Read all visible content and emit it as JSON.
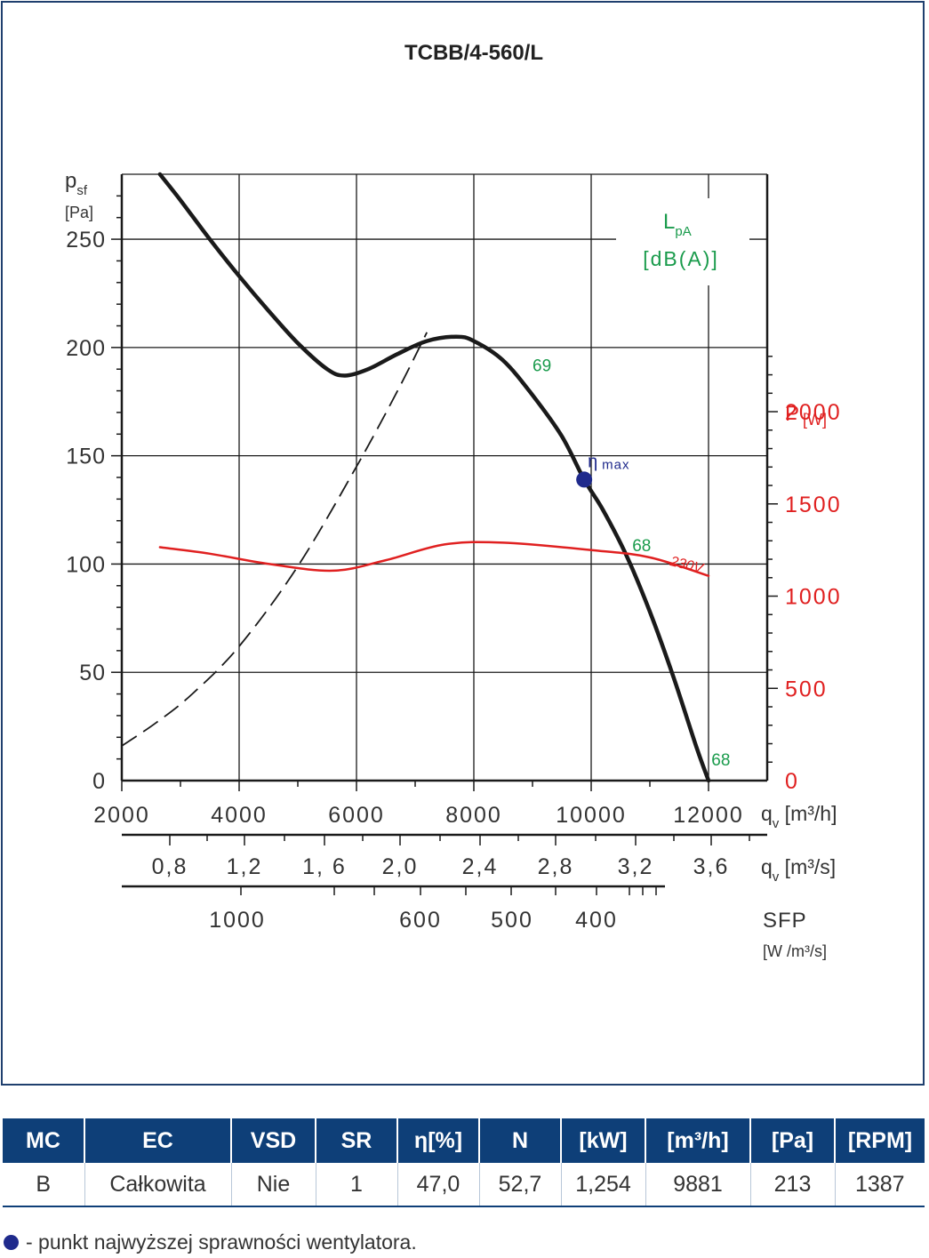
{
  "title": "TCBB/4-560/L",
  "chart_data": {
    "type": "line",
    "title": "TCBB/4-560/L",
    "x": {
      "label": "q",
      "label_sub": "v",
      "unit": " [m³/h]",
      "range": [
        2000,
        13000
      ],
      "ticks": [
        "2000",
        "4000",
        "6000",
        "8000",
        "10000",
        "12000"
      ]
    },
    "x2": {
      "label": "q",
      "label_sub": "v",
      "unit": " [m³/s]",
      "ticks": [
        "0,8",
        "1,2",
        "1, 6",
        "2,0",
        "2,4",
        "2,8",
        "3,2",
        "3,6"
      ]
    },
    "sfp": {
      "label": "SFP",
      "unit": "[W /m³/s]",
      "ticks": [
        "1000",
        "600",
        "500",
        "400"
      ]
    },
    "y_left": {
      "label": "p",
      "label_sub": "sf",
      "unit": "[Pa]",
      "range": [
        0,
        280
      ],
      "ticks": [
        "0",
        "50",
        "100",
        "150",
        "200",
        "250"
      ]
    },
    "y_right": {
      "label": "P",
      "unit": "[W]",
      "range": [
        0,
        2000
      ],
      "ticks": [
        "0",
        "500",
        "1000",
        "1500",
        "2000"
      ]
    },
    "noise_label": "L",
    "noise_sub": "pA",
    "noise_unit": "[dB(A)]",
    "series": [
      {
        "role": "pressure",
        "color": "#1a1a1a",
        "points": [
          [
            2650,
            280
          ],
          [
            3000,
            268
          ],
          [
            3500,
            250
          ],
          [
            4000,
            233
          ],
          [
            4500,
            217
          ],
          [
            5000,
            202
          ],
          [
            5500,
            190
          ],
          [
            5800,
            187
          ],
          [
            6200,
            190
          ],
          [
            6700,
            197
          ],
          [
            7200,
            203
          ],
          [
            7700,
            205
          ],
          [
            8000,
            203
          ],
          [
            8500,
            194
          ],
          [
            9000,
            178
          ],
          [
            9500,
            159
          ],
          [
            9881,
            139
          ],
          [
            10200,
            125
          ],
          [
            10600,
            104
          ],
          [
            11000,
            78
          ],
          [
            11400,
            48
          ],
          [
            11800,
            15
          ],
          [
            12000,
            0
          ]
        ]
      },
      {
        "role": "system",
        "color": "#1a1a1a",
        "dashed": true,
        "points": [
          [
            2000,
            16
          ],
          [
            2600,
            27
          ],
          [
            3200,
            40
          ],
          [
            4000,
            62
          ],
          [
            5000,
            99
          ],
          [
            6000,
            145
          ],
          [
            6700,
            180
          ],
          [
            7200,
            207
          ]
        ]
      },
      {
        "role": "power",
        "label": "230V",
        "color": "#e02020",
        "points": [
          [
            2650,
            1265
          ],
          [
            3500,
            1230
          ],
          [
            4500,
            1175
          ],
          [
            5600,
            1138
          ],
          [
            6500,
            1195
          ],
          [
            7500,
            1280
          ],
          [
            8500,
            1290
          ],
          [
            10000,
            1250
          ],
          [
            11000,
            1210
          ],
          [
            12000,
            1110
          ]
        ]
      }
    ],
    "efficiency_point": {
      "x": 9881,
      "y": 139,
      "label": "η",
      "label_sub": "max",
      "color": "#1f2a8c"
    },
    "noise_annotations": [
      {
        "text": "69",
        "x": 9000,
        "y": 189
      },
      {
        "text": "68",
        "x": 10700,
        "y": 106
      },
      {
        "text": "68",
        "x": 12050,
        "y": 7
      }
    ]
  },
  "table": {
    "headers": [
      "MC",
      "EC",
      "VSD",
      "SR",
      "η[%]",
      "N",
      "[kW]",
      "[m³/h]",
      "[Pa]",
      "[RPM]"
    ],
    "row": [
      "B",
      "Całkowita",
      "Nie",
      "1",
      "47,0",
      "52,7",
      "1,254",
      "9881",
      "213",
      "1387"
    ]
  },
  "legend_note": "- punkt najwyższej sprawności wentylatora.",
  "colors": {
    "frame": "#1f3f6e",
    "header_bg": "#0e3f78",
    "pressure": "#1a1a1a",
    "power": "#e02020",
    "noise": "#1a9b4c",
    "eta_point": "#1f2a8c"
  }
}
